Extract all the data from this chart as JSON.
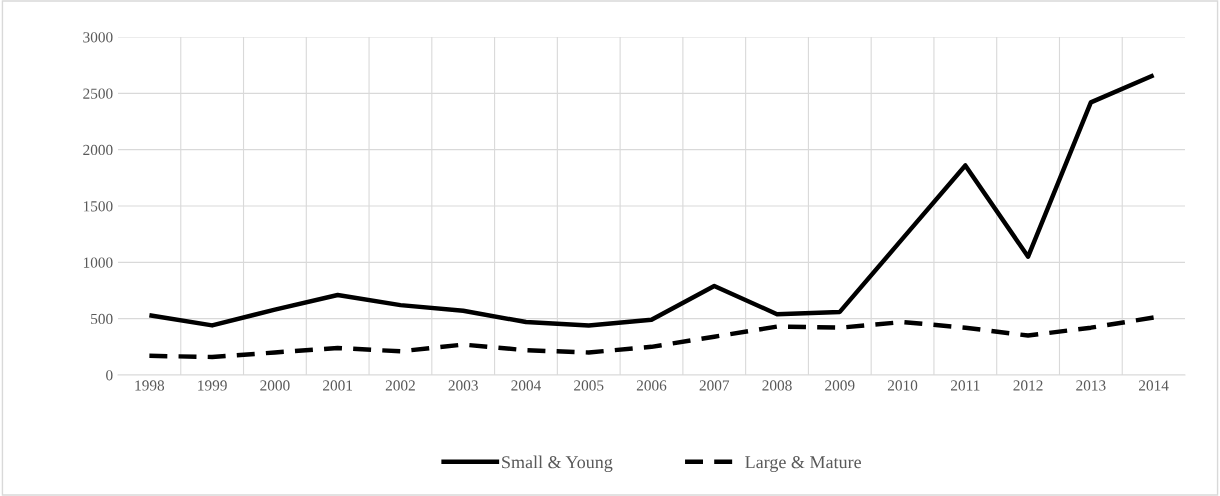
{
  "chart_data": {
    "type": "line",
    "categories": [
      "1998",
      "1999",
      "2000",
      "2001",
      "2002",
      "2003",
      "2004",
      "2005",
      "2006",
      "2007",
      "2008",
      "2009",
      "2010",
      "2011",
      "2012",
      "2013",
      "2014"
    ],
    "series": [
      {
        "name": "Small & Young",
        "color": "#000000",
        "line_style": "solid",
        "values": [
          530,
          440,
          580,
          710,
          620,
          570,
          470,
          440,
          490,
          790,
          540,
          560,
          1210,
          1860,
          1050,
          2420,
          2660
        ]
      },
      {
        "name": "Large & Mature",
        "color": "#000000",
        "line_style": "dashed",
        "values": [
          170,
          160,
          200,
          240,
          210,
          270,
          220,
          200,
          250,
          340,
          430,
          420,
          470,
          420,
          350,
          420,
          510
        ]
      }
    ],
    "ylim": [
      0,
      3000
    ],
    "yticks": [
      0,
      500,
      1000,
      1500,
      2000,
      2500,
      3000
    ],
    "grid": true,
    "legend": "bottom",
    "marker": "none"
  }
}
